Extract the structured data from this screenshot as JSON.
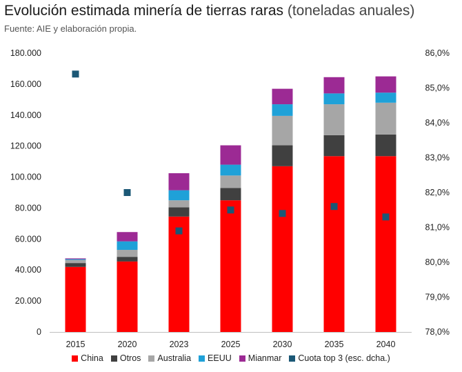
{
  "header": {
    "title_main": "Evolución estimada minería de tierras raras",
    "title_suffix": "(toneladas anuales)",
    "source": "Fuente: AIE y elaboración propia."
  },
  "chart_data": {
    "type": "bar",
    "stacked": true,
    "title": "Evolución estimada minería de tierras raras (toneladas anuales)",
    "categories": [
      "2015",
      "2020",
      "2023",
      "2025",
      "2030",
      "2035",
      "2040"
    ],
    "series": [
      {
        "name": "China",
        "color": "#ff0000",
        "values": [
          42000,
          45500,
          74500,
          85000,
          107000,
          113500,
          113500
        ]
      },
      {
        "name": "Otros",
        "color": "#404040",
        "values": [
          2500,
          3000,
          6000,
          8000,
          13500,
          13500,
          14000
        ]
      },
      {
        "name": "Australia",
        "color": "#a6a6a6",
        "values": [
          2000,
          4500,
          4500,
          8000,
          19000,
          20000,
          20500
        ]
      },
      {
        "name": "EEUU",
        "color": "#1fa1d8",
        "values": [
          500,
          5500,
          6500,
          7000,
          7500,
          7000,
          6500
        ]
      },
      {
        "name": "Mianmar",
        "color": "#9c2a94",
        "values": [
          500,
          6000,
          11000,
          12500,
          10000,
          10500,
          10500
        ]
      }
    ],
    "line_series": {
      "name": "Cuota top 3 (esc. dcha.)",
      "color": "#1b5876",
      "axis": "right",
      "values": [
        85.4,
        82.0,
        80.9,
        81.5,
        81.4,
        81.6,
        81.3
      ]
    },
    "y_left": {
      "lim": [
        0,
        180000
      ],
      "ticks": [
        0,
        20000,
        40000,
        60000,
        80000,
        100000,
        120000,
        140000,
        160000,
        180000
      ],
      "tick_labels": [
        "0",
        "20.000",
        "40.000",
        "60.000",
        "80.000",
        "100.000",
        "120.000",
        "140.000",
        "160.000",
        "180.000"
      ]
    },
    "y_right": {
      "lim": [
        78,
        86
      ],
      "ticks": [
        78,
        79,
        80,
        81,
        82,
        83,
        84,
        85,
        86
      ],
      "tick_labels": [
        "78,0%",
        "79,0%",
        "80,0%",
        "81,0%",
        "82,0%",
        "83,0%",
        "84,0%",
        "85,0%",
        "86,0%"
      ]
    },
    "legend": [
      "China",
      "Otros",
      "Australia",
      "EEUU",
      "Mianmar",
      "Cuota top 3 (esc. dcha.)"
    ],
    "legend_position": "bottom",
    "grid": false
  }
}
